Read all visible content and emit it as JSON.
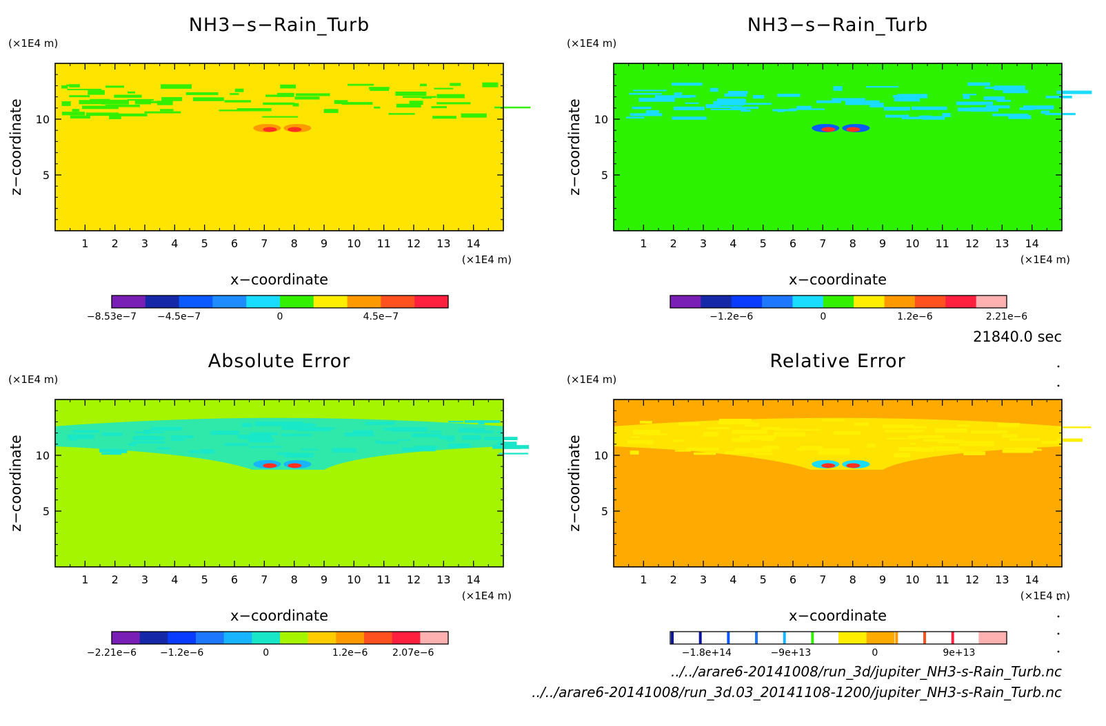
{
  "time_label": "21840.0 sec",
  "file_paths": [
    "../../arare6-20141008/run_3d/jupiter_NH3-s-Rain_Turb.nc",
    "../../arare6-20141008/run_3d.03_20141108-1200/jupiter_NH3-s-Rain_Turb.nc"
  ],
  "chart_data": [
    {
      "type": "heatmap",
      "title": "NH3−s−Rain_Turb",
      "xlabel": "x−coordinate",
      "ylabel": "z−coordinate",
      "x_unit": "(×1E4 m)",
      "y_unit": "(×1E4 m)",
      "xlim": [
        0,
        15
      ],
      "ylim": [
        0,
        15
      ],
      "x_ticks": [
        "1",
        "2",
        "3",
        "4",
        "5",
        "6",
        "7",
        "8",
        "9",
        "10",
        "11",
        "12",
        "13",
        "14"
      ],
      "y_ticks": [
        "5",
        "10"
      ],
      "background_color": "#ffe400",
      "layer_colors": [
        "#33ef00",
        "#ff9900"
      ],
      "colorbar": {
        "colors": [
          "#7a1fb5",
          "#1428a8",
          "#0a5aff",
          "#1e8cff",
          "#19dcff",
          "#33ef00",
          "#ffee00",
          "#ff9900",
          "#ff5020",
          "#ff2040"
        ],
        "labels": [
          "−8.53e−7",
          "−4.5e−7",
          "0",
          "4.5e−7"
        ],
        "label_positions": [
          0,
          2,
          5,
          8
        ]
      }
    },
    {
      "type": "heatmap",
      "title": "NH3−s−Rain_Turb",
      "xlabel": "x−coordinate",
      "ylabel": "z−coordinate",
      "x_unit": "(×1E4 m)",
      "y_unit": "(×1E4 m)",
      "xlim": [
        0,
        15
      ],
      "ylim": [
        0,
        15
      ],
      "x_ticks": [
        "1",
        "2",
        "3",
        "4",
        "5",
        "6",
        "7",
        "8",
        "9",
        "10",
        "11",
        "12",
        "13",
        "14"
      ],
      "y_ticks": [
        "5",
        "10"
      ],
      "background_color": "#2cf200",
      "layer_colors": [
        "#19dcff",
        "#0a5aff"
      ],
      "colorbar": {
        "colors": [
          "#7a1fb5",
          "#1428a8",
          "#0a3cff",
          "#1e78ff",
          "#19dcff",
          "#33ef00",
          "#ffee00",
          "#ff9900",
          "#ff5020",
          "#ff2040",
          "#ffb0b0"
        ],
        "labels": [
          "−1.2e−6",
          "0",
          "1.2e−6",
          "2.21e−6"
        ],
        "label_positions": [
          2,
          5,
          8,
          11
        ]
      }
    },
    {
      "type": "heatmap",
      "title": "Absolute Error",
      "xlabel": "x−coordinate",
      "ylabel": "z−coordinate",
      "x_unit": "(×1E4 m)",
      "y_unit": "(×1E4 m)",
      "xlim": [
        0,
        15
      ],
      "ylim": [
        0,
        15
      ],
      "x_ticks": [
        "1",
        "2",
        "3",
        "4",
        "5",
        "6",
        "7",
        "8",
        "9",
        "10",
        "11",
        "12",
        "13",
        "14"
      ],
      "y_ticks": [
        "5",
        "10"
      ],
      "background_color": "#a6f500",
      "layer_colors": [
        "#19e6c8",
        "#19b4ff"
      ],
      "colorbar": {
        "colors": [
          "#7a1fb5",
          "#1428a8",
          "#0a3cff",
          "#1e78ff",
          "#19b4ff",
          "#19e6c8",
          "#a6f500",
          "#ffcc00",
          "#ff9900",
          "#ff5020",
          "#ff2040",
          "#ffb0b0"
        ],
        "labels": [
          "−2.21e−6",
          "−1.2e−6",
          "0",
          "1.2e−6",
          "2.07e−6"
        ],
        "label_positions": [
          0,
          2.5,
          5.5,
          8.5,
          10.75
        ]
      }
    },
    {
      "type": "heatmap",
      "title": "Relative Error",
      "xlabel": "x−coordinate",
      "ylabel": "z−coordinate",
      "x_unit": "(×1E4 m)",
      "y_unit": "(×1E4 m)",
      "xlim": [
        0,
        15
      ],
      "ylim": [
        0,
        15
      ],
      "x_ticks": [
        "1",
        "2",
        "3",
        "4",
        "5",
        "6",
        "7",
        "8",
        "9",
        "10",
        "11",
        "12",
        "13",
        "14"
      ],
      "y_ticks": [
        "5",
        "10"
      ],
      "background_color": "#ffaa00",
      "layer_colors": [
        "#ffee00",
        "#19dcff"
      ],
      "colorbar": {
        "segments": [
          {
            "color": "#ffffff",
            "line": "#0a14a0"
          },
          {
            "color": "#ffffff",
            "line": "#0a14a0"
          },
          {
            "color": "#ffffff",
            "line": "#0a5aff"
          },
          {
            "color": "#ffffff",
            "line": "#1e78ff"
          },
          {
            "color": "#ffffff",
            "line": "#19b4ff"
          },
          {
            "color": "#ffffff",
            "line": "#33ef00"
          },
          {
            "color": "#ffee00",
            "line": "#ffee00"
          },
          {
            "color": "#ffaa00",
            "line": "#ffaa00"
          },
          {
            "color": "#ffffff",
            "line": "#ff9900"
          },
          {
            "color": "#ffffff",
            "line": "#ff5020"
          },
          {
            "color": "#ffffff",
            "line": "#ff2040"
          },
          {
            "color": "#ffb0b0",
            "line": "#ffb0b0"
          }
        ],
        "labels": [
          "−1.8e+14",
          "−9e+13",
          "0",
          "9e+13"
        ],
        "label_positions": [
          1.3,
          4.3,
          7.3,
          10.3
        ]
      }
    }
  ]
}
